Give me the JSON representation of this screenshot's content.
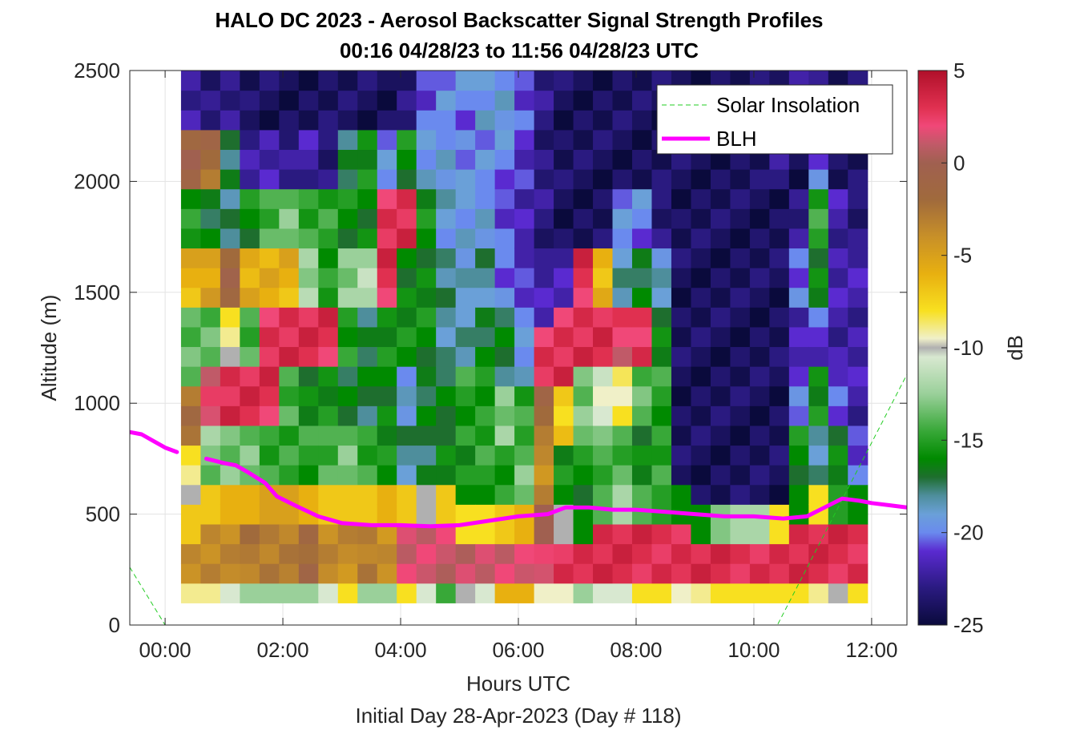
{
  "chart_data": {
    "type": "heatmap",
    "title": "HALO DC 2023 - Aerosol Backscatter Signal Strength Profiles",
    "subtitle": "00:16 04/28/23 to 11:56 04/28/23  UTC",
    "xlabel": "Hours UTC",
    "xlabel_sub": "Initial Day 28-Apr-2023 (Day # 118)",
    "ylabel": "Altitude (m)",
    "colorbar_label": "dB",
    "xlim": [
      -0.6,
      12.6
    ],
    "ylim": [
      0,
      2500
    ],
    "x_ticks": [
      {
        "value": 0,
        "label": "00:00"
      },
      {
        "value": 2,
        "label": "02:00"
      },
      {
        "value": 4,
        "label": "04:00"
      },
      {
        "value": 6,
        "label": "06:00"
      },
      {
        "value": 8,
        "label": "08:00"
      },
      {
        "value": 10,
        "label": "10:00"
      },
      {
        "value": 12,
        "label": "12:00"
      }
    ],
    "y_ticks": [
      {
        "value": 0,
        "label": "0"
      },
      {
        "value": 500,
        "label": "500"
      },
      {
        "value": 1000,
        "label": "1000"
      },
      {
        "value": 1500,
        "label": "1500"
      },
      {
        "value": 2000,
        "label": "2000"
      },
      {
        "value": 2500,
        "label": "2500"
      }
    ],
    "colorbar_range": [
      -25,
      5
    ],
    "colorbar_ticks": [
      {
        "value": 5,
        "label": "5"
      },
      {
        "value": 0,
        "label": "0"
      },
      {
        "value": -5,
        "label": "-5"
      },
      {
        "value": -10,
        "label": "-10"
      },
      {
        "value": -15,
        "label": "-15"
      },
      {
        "value": -20,
        "label": "-20"
      },
      {
        "value": -25,
        "label": "-25"
      }
    ],
    "grid": true,
    "legend": {
      "position": "top-right",
      "entries": [
        {
          "name": "Solar Insolation",
          "color": "#22cc22",
          "style": "dashed"
        },
        {
          "name": "BLH",
          "color": "#ff00ff",
          "style": "solid"
        }
      ]
    },
    "colormap": [
      {
        "value": -25,
        "color": "#0a0a3c"
      },
      {
        "value": -23,
        "color": "#2a1a80"
      },
      {
        "value": -21,
        "color": "#5a2ad0"
      },
      {
        "value": -20,
        "color": "#6a8aee"
      },
      {
        "value": -19,
        "color": "#6aa0d8"
      },
      {
        "value": -18,
        "color": "#4e8e9c"
      },
      {
        "value": -17,
        "color": "#1e6e2e"
      },
      {
        "value": -16,
        "color": "#008a00"
      },
      {
        "value": -14.5,
        "color": "#38a838"
      },
      {
        "value": -12.5,
        "color": "#9ad09a"
      },
      {
        "value": -10.5,
        "color": "#d8e8d0"
      },
      {
        "value": -10,
        "color": "#b0b0b0"
      },
      {
        "value": -9.5,
        "color": "#f0f0c8"
      },
      {
        "value": -8,
        "color": "#f8e020"
      },
      {
        "value": -6,
        "color": "#e8b010"
      },
      {
        "value": -4,
        "color": "#c89028"
      },
      {
        "value": -2,
        "color": "#a06a3c"
      },
      {
        "value": 0,
        "color": "#a06050"
      },
      {
        "value": 1,
        "color": "#c05a68"
      },
      {
        "value": 2,
        "color": "#f04878"
      },
      {
        "value": 3,
        "color": "#e03050"
      },
      {
        "value": 5,
        "color": "#b0102a"
      }
    ],
    "heatmap": {
      "x_start": 0.27,
      "x_end": 11.93,
      "y_start": 100,
      "y_end": 2500,
      "columns": 35,
      "rows": 27,
      "column_profiles": [
        {
          "boundary": 570,
          "surface": -3,
          "mix": -7,
          "upper": [
            -9,
            -2,
            -14,
            -6,
            -15,
            -1,
            -22
          ]
        },
        {
          "boundary": 590,
          "surface": -3,
          "mix": -7,
          "upper": [
            -13,
            2,
            -14,
            -5,
            -17,
            -2,
            -23
          ]
        },
        {
          "boundary": 610,
          "surface": -3,
          "mix": -6,
          "upper": [
            -13,
            3,
            -9,
            -1,
            -18,
            -17,
            -23
          ]
        },
        {
          "boundary": 620,
          "surface": -2,
          "mix": -6,
          "upper": [
            -13,
            3,
            -14,
            -6,
            -16,
            -22,
            -24
          ]
        },
        {
          "boundary": 620,
          "surface": -2,
          "mix": -5,
          "upper": [
            -15,
            3,
            3,
            -6,
            -14,
            -22,
            -24
          ]
        },
        {
          "boundary": 640,
          "surface": -2,
          "mix": -5,
          "upper": [
            -15,
            -14,
            3,
            -6,
            -13,
            -23,
            -24
          ]
        },
        {
          "boundary": 640,
          "surface": -1,
          "mix": -6,
          "upper": [
            -15,
            -16,
            3,
            -12,
            -15,
            -22,
            -24
          ]
        },
        {
          "boundary": 650,
          "surface": -3,
          "mix": -7,
          "upper": [
            -14,
            -16,
            3,
            -15,
            -15,
            -23,
            -24
          ]
        },
        {
          "boundary": 640,
          "surface": -3,
          "mix": -7,
          "upper": [
            -13,
            -17,
            -15,
            -13,
            -16,
            -17,
            -24
          ]
        },
        {
          "boundary": 630,
          "surface": -2,
          "mix": -7,
          "upper": [
            -15,
            -17,
            -17,
            -12,
            -16,
            -16,
            -24
          ]
        },
        {
          "boundary": 600,
          "surface": -3,
          "mix": -6,
          "upper": [
            -16,
            -16,
            -16,
            3,
            3,
            -20,
            -24
          ]
        },
        {
          "boundary": 600,
          "surface": 2,
          "mix": -7,
          "upper": [
            -18,
            -19,
            -16,
            -16,
            3,
            -16,
            -23
          ]
        },
        {
          "boundary": 600,
          "surface": 2,
          "mix": -10,
          "upper": [
            -17,
            -17,
            -16,
            -16,
            -16,
            -19,
            -21
          ]
        },
        {
          "boundary": 590,
          "surface": 2,
          "mix": -7,
          "upper": [
            -16,
            -17,
            -18,
            -18,
            -19,
            -19,
            -20
          ]
        },
        {
          "boundary": 580,
          "surface": 2,
          "mix": -8,
          "upper": [
            -16,
            -15,
            -18,
            -19,
            -19,
            -20,
            -20
          ]
        },
        {
          "boundary": 580,
          "surface": 2,
          "mix": -8,
          "upper": [
            -15,
            -15,
            -17,
            -18,
            -19,
            -20,
            -19
          ]
        },
        {
          "boundary": 560,
          "surface": 2,
          "mix": -7,
          "upper": [
            -15,
            -13,
            -17,
            -20,
            -21,
            -20,
            -19
          ]
        },
        {
          "boundary": 540,
          "surface": 2,
          "mix": -6,
          "upper": [
            -13,
            -15,
            -19,
            -21,
            -22,
            -21,
            -21
          ]
        },
        {
          "boundary": 520,
          "surface": 3,
          "mix": 0,
          "upper": [
            -4,
            -2,
            3,
            -22,
            -23,
            -23,
            -23
          ]
        },
        {
          "boundary": 560,
          "surface": 4,
          "mix": -10,
          "upper": [
            -16,
            -7,
            3,
            -22,
            -24,
            -24,
            -24
          ]
        },
        {
          "boundary": 580,
          "surface": 4,
          "mix": -16,
          "upper": [
            -16,
            -13,
            3,
            3,
            -24,
            -24,
            -24
          ]
        },
        {
          "boundary": 600,
          "surface": 4,
          "mix": -14,
          "upper": [
            -14,
            -10,
            3,
            -6,
            -24,
            -24,
            -24
          ]
        },
        {
          "boundary": 610,
          "surface": 4,
          "mix": -12,
          "upper": [
            -14,
            -9,
            2,
            -18,
            -20,
            -24,
            -24
          ]
        },
        {
          "boundary": 600,
          "surface": 4,
          "mix": -14,
          "upper": [
            -16,
            -14,
            3,
            -17,
            -20,
            -24,
            -24
          ]
        },
        {
          "boundary": 600,
          "surface": 4,
          "mix": -15,
          "upper": [
            -15,
            -15,
            -16,
            -19,
            -23,
            -24,
            -24
          ]
        },
        {
          "boundary": 600,
          "surface": 4,
          "mix": -16,
          "upper": [
            -24,
            -24,
            -24,
            -24,
            -24,
            -24,
            -24
          ]
        },
        {
          "boundary": 560,
          "surface": 4,
          "mix": -16,
          "upper": [
            -24,
            -24,
            -24,
            -24,
            -24,
            -24,
            -24
          ]
        },
        {
          "boundary": 560,
          "surface": 4,
          "mix": -13,
          "upper": [
            -24,
            -24,
            -24,
            -24,
            -24,
            -24,
            -24
          ]
        },
        {
          "boundary": 560,
          "surface": 4,
          "mix": -12,
          "upper": [
            -24,
            -24,
            -24,
            -24,
            -24,
            -24,
            -24
          ]
        },
        {
          "boundary": 570,
          "surface": 4,
          "mix": -12,
          "upper": [
            -24,
            -24,
            -24,
            -24,
            -24,
            -24,
            -24
          ]
        },
        {
          "boundary": 580,
          "surface": 4,
          "mix": -8,
          "upper": [
            -24,
            -24,
            -24,
            -24,
            -24,
            -23,
            -24
          ]
        },
        {
          "boundary": 640,
          "surface": 4,
          "mix": -16,
          "upper": [
            -16,
            -20,
            -22,
            -20,
            -23,
            -24,
            -21
          ]
        },
        {
          "boundary": 650,
          "surface": 4,
          "mix": -8,
          "upper": [
            -18,
            -16,
            -21,
            -16,
            -15,
            -20,
            -23
          ]
        },
        {
          "boundary": 650,
          "surface": 4,
          "mix": -15,
          "upper": [
            -16,
            -21,
            -22,
            -22,
            -22,
            -24,
            -24
          ]
        },
        {
          "boundary": 630,
          "surface": 4,
          "mix": -16,
          "upper": [
            -21,
            -22,
            -22,
            -22,
            -23,
            -24,
            -24
          ]
        }
      ],
      "near_ground": [
        -9,
        -9,
        -10.5,
        -12.5,
        -12.5,
        -12.5,
        -12.5,
        -10.5,
        -8,
        -12.5,
        -12.5,
        -8,
        -10.5,
        -14.5,
        -10,
        -10.5,
        -6,
        -6,
        -9.5,
        -9.5,
        -12.5,
        -10.5,
        -10.5,
        -8,
        -8,
        -9.5,
        -9,
        -8,
        -8,
        -8,
        -8,
        -8,
        -9,
        -10,
        -8
      ]
    },
    "series": [
      {
        "name": "BLH",
        "x": [
          -0.6,
          -0.4,
          -0.2,
          0.0,
          0.2,
          0.45,
          0.7,
          1.0,
          1.2,
          1.4,
          1.7,
          1.9,
          2.2,
          2.6,
          3.0,
          3.5,
          4.0,
          4.5,
          5.0,
          5.5,
          6.0,
          6.5,
          6.8,
          7.2,
          7.6,
          8.0,
          8.5,
          9.0,
          9.5,
          10.0,
          10.5,
          10.9,
          11.2,
          11.5,
          11.8,
          12.0,
          12.3,
          12.6
        ],
        "y": [
          870,
          860,
          830,
          800,
          780,
          null,
          750,
          730,
          720,
          690,
          640,
          580,
          540,
          490,
          460,
          450,
          450,
          445,
          450,
          470,
          490,
          500,
          530,
          530,
          520,
          520,
          510,
          500,
          490,
          490,
          480,
          490,
          530,
          570,
          560,
          550,
          540,
          530
        ]
      },
      {
        "name": "Solar Insolation",
        "x": [
          -0.6,
          0.0,
          10.4,
          12.6
        ],
        "y": [
          260,
          0,
          0,
          1130
        ]
      }
    ]
  }
}
